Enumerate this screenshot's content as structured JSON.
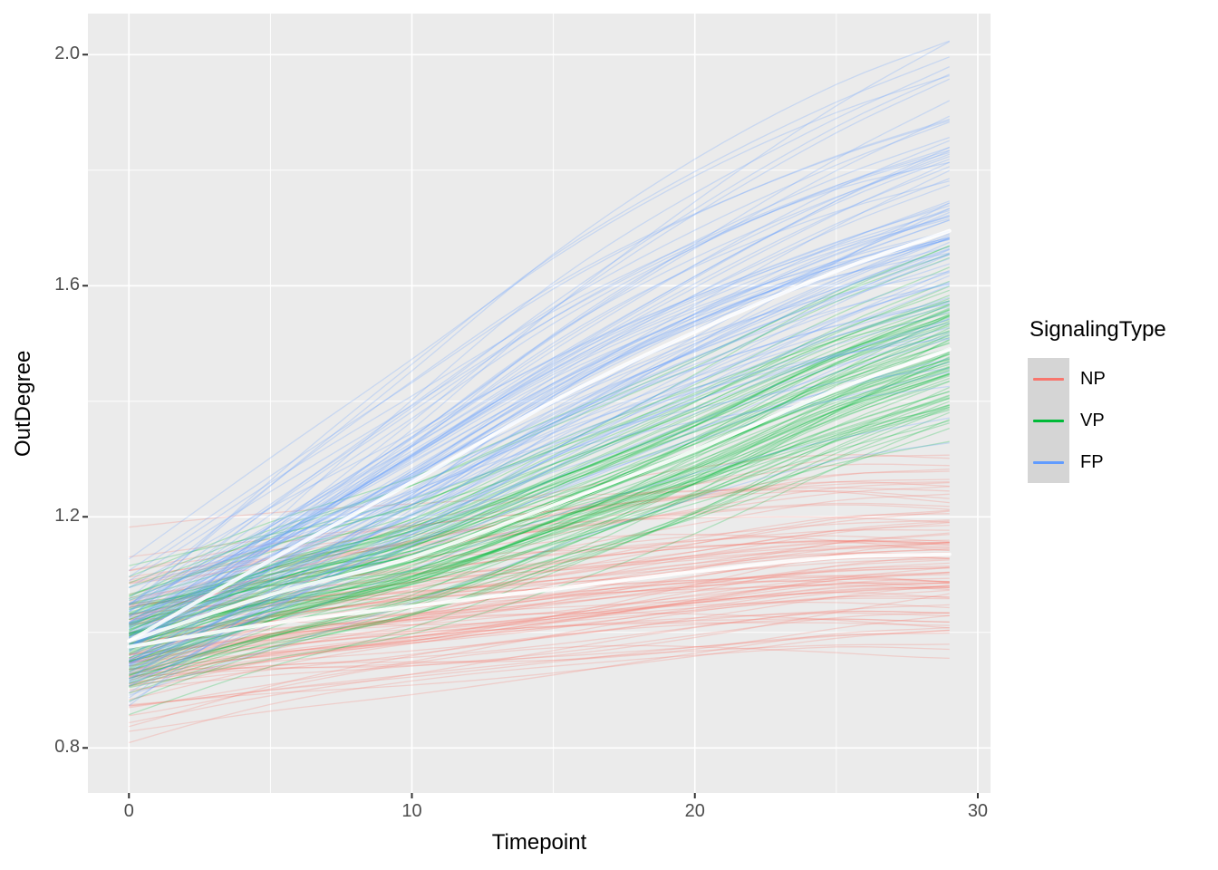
{
  "chart_data": {
    "type": "line",
    "title": "",
    "xlabel": "Timepoint",
    "ylabel": "OutDegree",
    "grid": "on",
    "x_axis": {
      "lim": [
        -1.45,
        30.45
      ],
      "ticks": [
        {
          "label": "0",
          "value": 0
        },
        {
          "label": "10",
          "value": 10
        },
        {
          "label": "20",
          "value": 20
        },
        {
          "label": "30",
          "value": 30
        }
      ],
      "minor": [
        5,
        15,
        25
      ]
    },
    "y_axis": {
      "lim": [
        0.722,
        2.071
      ],
      "ticks": [
        {
          "label": "0.8",
          "value": 0.8
        },
        {
          "label": "1.2",
          "value": 1.2
        },
        {
          "label": "1.6",
          "value": 1.6
        },
        {
          "label": "2.0",
          "value": 2.0
        }
      ],
      "minor": [
        1.0,
        1.4,
        1.8
      ]
    },
    "t_range": [
      0,
      29
    ],
    "legend": {
      "title": "SignalingType",
      "position": "right",
      "entries": [
        {
          "label": "NP",
          "color": "#F8766D"
        },
        {
          "label": "VP",
          "color": "#00BA38"
        },
        {
          "label": "FP",
          "color": "#619CFF"
        }
      ]
    },
    "colors": {
      "panel_bg": "#EBEBEB",
      "grid": "#FFFFFF",
      "tick_text": "#4D4D4D",
      "title_text": "#000000",
      "tick_mark": "#333333",
      "legend_key_bg": "#D5D5D5",
      "mean_line": "#FFFFFF"
    },
    "series": [
      {
        "name": "NP",
        "color": "#F8766D",
        "mean": {
          "t": [
            0,
            5,
            10,
            15,
            20,
            25,
            29
          ],
          "v": [
            0.975,
            1.015,
            1.045,
            1.075,
            1.105,
            1.13,
            1.135
          ]
        },
        "ensemble": {
          "n": 95,
          "start_sd": 0.065,
          "growth_sd": 0.32,
          "bow_sd": 0.018,
          "alpha": 0.25,
          "width": 1.3,
          "seed": 11
        }
      },
      {
        "name": "VP",
        "color": "#00BA38",
        "mean": {
          "t": [
            0,
            5,
            10,
            15,
            20,
            25,
            29
          ],
          "v": [
            0.985,
            1.065,
            1.13,
            1.22,
            1.315,
            1.42,
            1.49
          ]
        },
        "ensemble": {
          "n": 95,
          "start_sd": 0.05,
          "growth_sd": 0.13,
          "bow_sd": 0.02,
          "alpha": 0.25,
          "width": 1.3,
          "seed": 22
        }
      },
      {
        "name": "FP",
        "color": "#619CFF",
        "mean": {
          "t": [
            0,
            5,
            10,
            15,
            20,
            25,
            29
          ],
          "v": [
            0.985,
            1.125,
            1.26,
            1.4,
            1.52,
            1.625,
            1.695
          ]
        },
        "ensemble": {
          "n": 95,
          "start_sd": 0.055,
          "growth_sd": 0.17,
          "bow_sd": 0.03,
          "alpha": 0.25,
          "width": 1.3,
          "seed": 33
        }
      }
    ],
    "mean_line_style": {
      "width": 4.2,
      "opacity": 0.88
    }
  }
}
